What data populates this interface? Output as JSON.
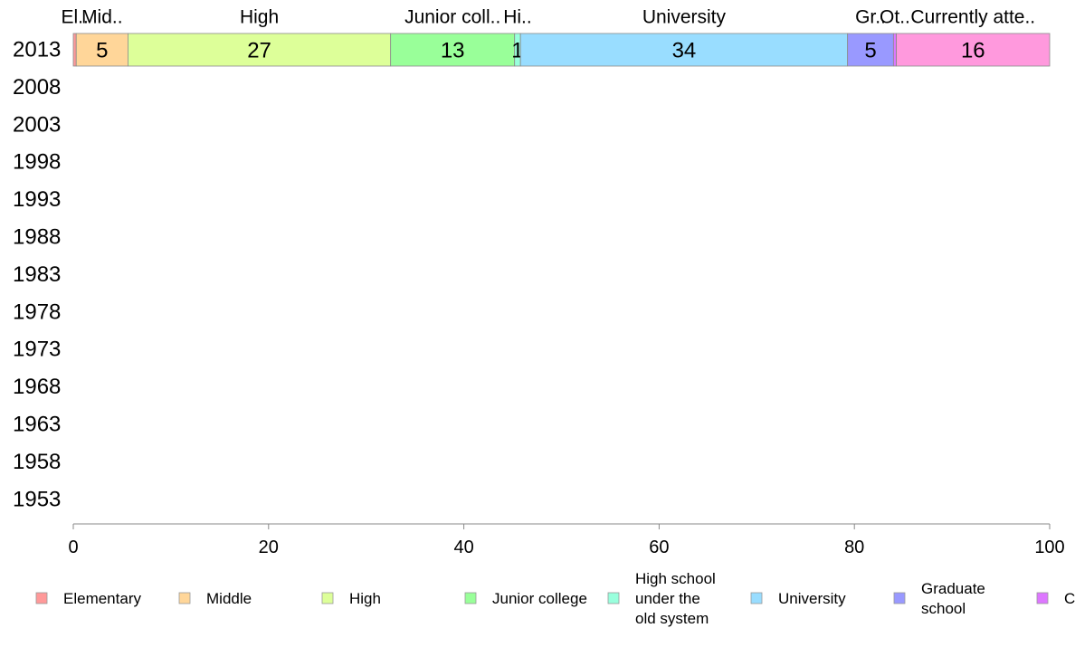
{
  "chart_data": {
    "type": "bar",
    "orientation": "horizontal",
    "stacked": true,
    "categories": [
      "2013",
      "2008",
      "2003",
      "1998",
      "1993",
      "1988",
      "1983",
      "1978",
      "1973",
      "1968",
      "1963",
      "1958",
      "1953"
    ],
    "series": [
      {
        "name": "Elementary",
        "color": "#FF9999",
        "top_label": "El..",
        "values": [
          0.3,
          null,
          null,
          null,
          null,
          null,
          null,
          null,
          null,
          null,
          null,
          null,
          null
        ]
      },
      {
        "name": "Middle",
        "color": "#FFD699",
        "top_label": "Mid..",
        "values": [
          5.3,
          null,
          null,
          null,
          null,
          null,
          null,
          null,
          null,
          null,
          null,
          null,
          null
        ]
      },
      {
        "name": "High",
        "color": "#DDFF99",
        "top_label": "High",
        "values": [
          26.9,
          null,
          null,
          null,
          null,
          null,
          null,
          null,
          null,
          null,
          null,
          null,
          null
        ]
      },
      {
        "name": "Junior college",
        "color": "#99FF99",
        "top_label": "Junior coll..",
        "values": [
          12.7,
          null,
          null,
          null,
          null,
          null,
          null,
          null,
          null,
          null,
          null,
          null,
          null
        ]
      },
      {
        "name": "High school under the old system",
        "color": "#99FFDD",
        "top_label": "Hi..",
        "values": [
          0.6,
          null,
          null,
          null,
          null,
          null,
          null,
          null,
          null,
          null,
          null,
          null,
          null
        ]
      },
      {
        "name": "University",
        "color": "#99DDFF",
        "top_label": "University",
        "values": [
          33.5,
          null,
          null,
          null,
          null,
          null,
          null,
          null,
          null,
          null,
          null,
          null,
          null
        ]
      },
      {
        "name": "Graduate school",
        "color": "#9999FF",
        "top_label": "Gr..",
        "values": [
          4.7,
          null,
          null,
          null,
          null,
          null,
          null,
          null,
          null,
          null,
          null,
          null,
          null
        ]
      },
      {
        "name": "",
        "color": "#DD77FF",
        "top_label": "Ot..",
        "values": [
          0.3,
          null,
          null,
          null,
          null,
          null,
          null,
          null,
          null,
          null,
          null,
          null,
          null
        ]
      },
      {
        "name": "",
        "color": "#FF99DD",
        "top_label": "Currently atte..",
        "values": [
          15.7,
          null,
          null,
          null,
          null,
          null,
          null,
          null,
          null,
          null,
          null,
          null,
          null
        ]
      }
    ],
    "data_labels": [
      "",
      "5",
      "27",
      "13",
      "1",
      "34",
      "5",
      "",
      "16"
    ],
    "xlim": [
      0,
      100
    ],
    "xticks": [
      "0",
      "20",
      "40",
      "60",
      "80",
      "100"
    ],
    "legend_entries": [
      "Elementary",
      "Middle",
      "High",
      "Junior college",
      "High school under the old system",
      "University",
      "Graduate school",
      "C"
    ],
    "legend_position": "bottom",
    "grid": false
  }
}
